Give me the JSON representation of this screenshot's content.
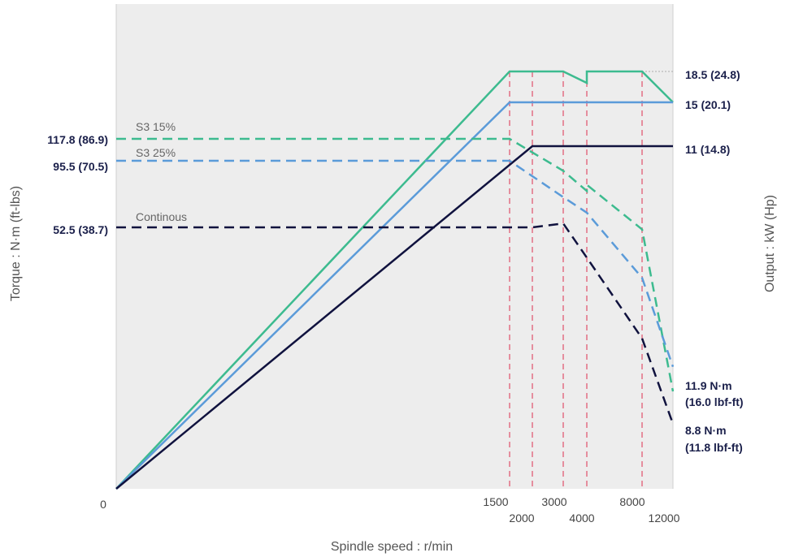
{
  "chart_data": {
    "type": "line",
    "xlabel": "Spindle speed : r/min",
    "ylabel_left": "Torque : N·m (ft-lbs)",
    "ylabel_right": "Output : kW (Hp)",
    "x_ticks_upper": [
      "1500",
      "3000",
      "8000"
    ],
    "x_ticks_lower": [
      "2000",
      "4000",
      "12000"
    ],
    "x_origin_label": "0",
    "torque_labels": [
      "117.8 (86.9)",
      "95.5 (70.5)",
      "52.5 (38.7)"
    ],
    "output_labels": [
      "18.5 (24.8)",
      "15 (20.1)",
      "11 (14.8)"
    ],
    "end_torque_labels": [
      {
        "line1": "11.9 N·m",
        "line2": "(16.0 lbf-ft)"
      },
      {
        "line1": "8.8 N·m",
        "line2": "(11.8 lbf-ft)"
      }
    ],
    "series_labels": [
      "S3 15%",
      "S3 25%",
      "Continous"
    ],
    "colors": {
      "s3_15": "#3dbb8f",
      "s3_25": "#5b9bd9",
      "continuous": "#10123e",
      "guides": "#e0506a",
      "plot_bg": "#ededed"
    },
    "series": [
      {
        "kind": "output",
        "color_key": "s3_15",
        "points": [
          [
            0,
            0
          ],
          [
            1500,
            18.5
          ],
          [
            3000,
            18.5
          ],
          [
            4000,
            17.2
          ],
          [
            4000,
            18.5
          ],
          [
            8000,
            18.5
          ],
          [
            12000,
            15
          ]
        ]
      },
      {
        "kind": "output",
        "color_key": "s3_25",
        "points": [
          [
            0,
            0
          ],
          [
            1500,
            15
          ],
          [
            12000,
            15
          ]
        ]
      },
      {
        "kind": "output",
        "color_key": "continuous",
        "points": [
          [
            0,
            0
          ],
          [
            2000,
            11
          ],
          [
            12000,
            11
          ]
        ]
      },
      {
        "kind": "torque",
        "color_key": "s3_15",
        "points": [
          [
            0,
            117.8
          ],
          [
            1500,
            117.8
          ],
          [
            3000,
            89
          ],
          [
            4000,
            76
          ],
          [
            4000,
            80
          ],
          [
            8000,
            52
          ],
          [
            12000,
            11.9
          ]
        ]
      },
      {
        "kind": "torque",
        "color_key": "s3_25",
        "points": [
          [
            0,
            95.5
          ],
          [
            1500,
            95.5
          ],
          [
            3000,
            72
          ],
          [
            4000,
            62
          ],
          [
            8000,
            40
          ],
          [
            12000,
            18
          ]
        ]
      },
      {
        "kind": "torque",
        "color_key": "continuous",
        "points": [
          [
            0,
            52.5
          ],
          [
            2000,
            52.5
          ],
          [
            3000,
            55
          ],
          [
            4000,
            45
          ],
          [
            8000,
            25
          ],
          [
            12000,
            8.8
          ]
        ]
      }
    ],
    "guide_speeds": [
      1500,
      2000,
      3000,
      4000,
      8000
    ],
    "grid": false
  }
}
